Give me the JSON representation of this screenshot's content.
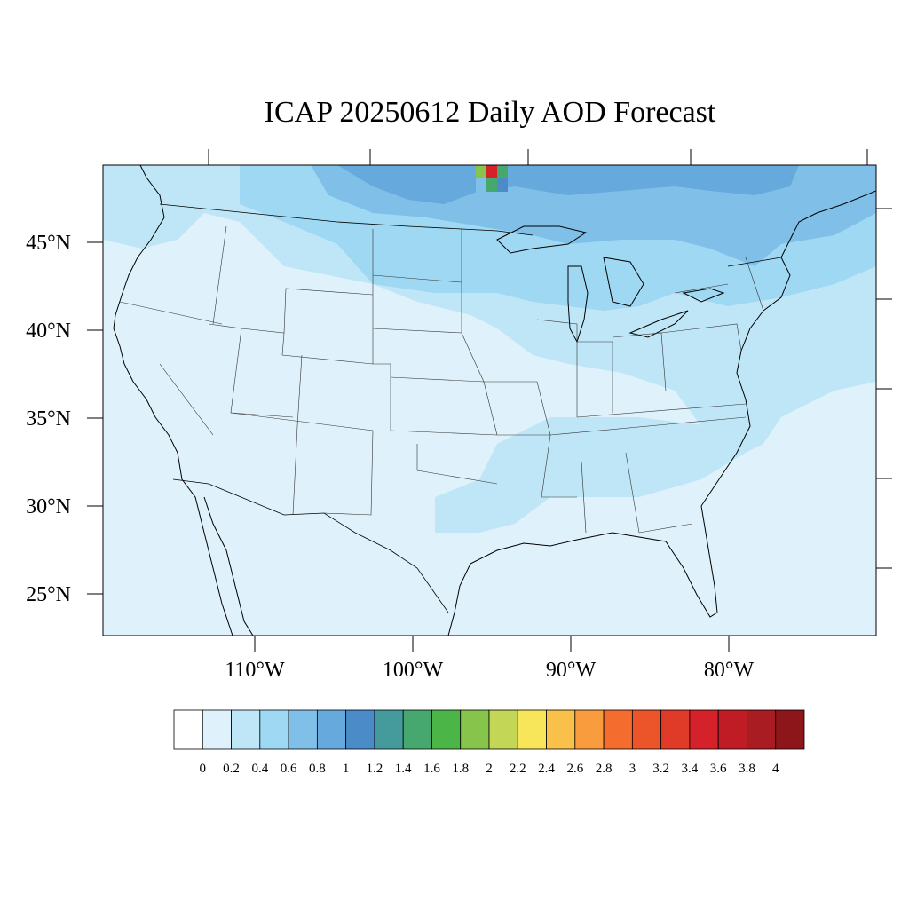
{
  "title": "ICAP 20250612 Daily AOD Forecast",
  "map": {
    "region": "Contiguous United States",
    "projection": "Lambert Conformal Conic",
    "lat_labels": [
      "45°N",
      "40°N",
      "35°N",
      "30°N",
      "25°N"
    ],
    "lon_labels": [
      "110°W",
      "100°W",
      "90°W",
      "80°W"
    ],
    "lat_values": [
      45,
      40,
      35,
      30,
      25
    ],
    "lon_values": [
      -110,
      -100,
      -90,
      -80
    ]
  },
  "colorbar": {
    "labels": [
      "0",
      "0.2",
      "0.4",
      "0.6",
      "0.8",
      "1",
      "1.2",
      "1.4",
      "1.6",
      "1.8",
      "2",
      "2.2",
      "2.4",
      "2.6",
      "2.8",
      "3",
      "3.2",
      "3.4",
      "3.6",
      "3.8",
      "4"
    ],
    "colors": [
      "#ffffff",
      "#dff2fb",
      "#bfe6f7",
      "#9fd8f3",
      "#80c0e8",
      "#65a9dd",
      "#4a8bc8",
      "#459b9b",
      "#46a86e",
      "#4cb548",
      "#86c44b",
      "#c4d655",
      "#f8e65a",
      "#f9c04a",
      "#f89c3e",
      "#f46c2e",
      "#ec5429",
      "#e03a28",
      "#d52129",
      "#c01c26",
      "#a91c22",
      "#8d161a"
    ]
  },
  "aod_field": {
    "background_level_range": [
      0,
      0.2
    ],
    "north_band_level_range": [
      0.6,
      1.0
    ],
    "hotspot": {
      "location": "Ontario / Minnesota border",
      "max_level_range": [
        3.4,
        3.6
      ]
    }
  }
}
